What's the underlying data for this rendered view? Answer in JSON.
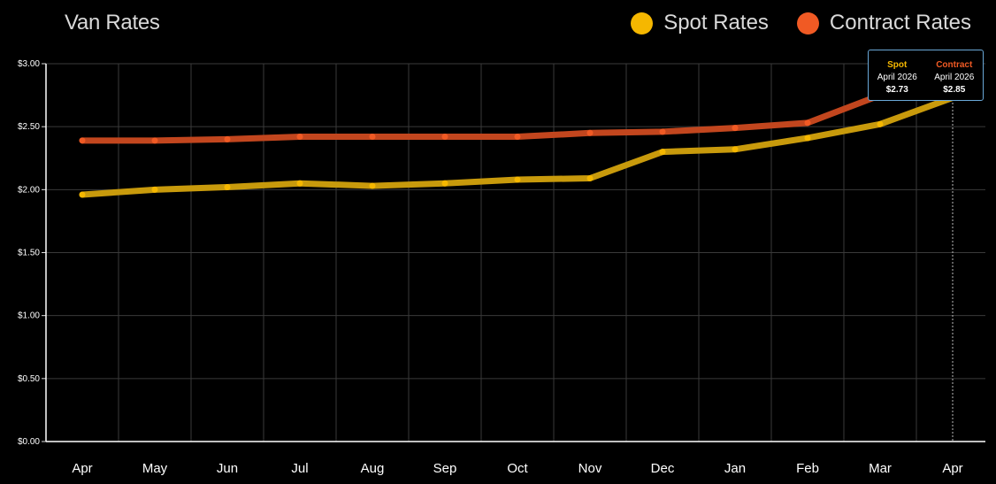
{
  "title": "Van Rates",
  "legend": [
    {
      "label": "Spot Rates",
      "color": "#f5b700"
    },
    {
      "label": "Contract Rates",
      "color": "#f05a24"
    }
  ],
  "tooltip": {
    "spot": {
      "label": "Spot",
      "date": "April 2026",
      "value": "$2.73",
      "color": "#f5b700"
    },
    "contract": {
      "label": "Contract",
      "date": "April 2026",
      "value": "$2.85",
      "color": "#f05a24"
    }
  },
  "chart_data": {
    "type": "line",
    "title": "Van Rates",
    "categories": [
      "Apr",
      "May",
      "Jun",
      "Jul",
      "Aug",
      "Sep",
      "Oct",
      "Nov",
      "Dec",
      "Jan",
      "Feb",
      "Mar",
      "Apr"
    ],
    "y_ticks": [
      "$0.00",
      "$0.50",
      "$1.00",
      "$1.50",
      "$2.00",
      "$2.50",
      "$3.00"
    ],
    "ylim": [
      0,
      3
    ],
    "grid": true,
    "legend_position": "top-right",
    "series": [
      {
        "name": "Spot Rates",
        "color": "#f5b700",
        "line_color": "#c89a0c",
        "values": [
          1.96,
          2.0,
          2.02,
          2.05,
          2.03,
          2.05,
          2.08,
          2.09,
          2.3,
          2.32,
          2.41,
          2.52,
          2.73
        ]
      },
      {
        "name": "Contract Rates",
        "color": "#f05a24",
        "line_color": "#c2461e",
        "values": [
          2.39,
          2.39,
          2.4,
          2.42,
          2.42,
          2.42,
          2.42,
          2.45,
          2.46,
          2.49,
          2.53,
          2.75,
          2.85
        ]
      }
    ]
  }
}
